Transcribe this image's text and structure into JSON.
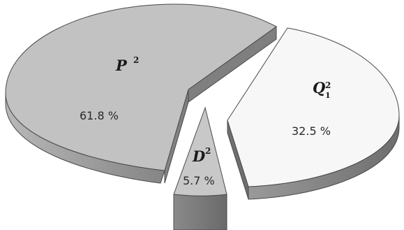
{
  "chart_data": {
    "type": "pie",
    "style": "3d-exploded",
    "slices": [
      {
        "key": "P",
        "label_base": "P",
        "label_sup": "2",
        "label_sub": "",
        "value": 61.8,
        "value_text": "61.8 %",
        "top_color": "#c2c2c2",
        "side_color": "#8f8f8f"
      },
      {
        "key": "Q1",
        "label_base": "Q",
        "label_sup": "2",
        "label_sub": "1",
        "value": 32.5,
        "value_text": "32.5 %",
        "top_color": "#f7f7f7",
        "side_color": "#8a8a8a"
      },
      {
        "key": "D",
        "label_base": "D",
        "label_sup": "2",
        "label_sub": "",
        "value": 5.7,
        "value_text": "5.7 %",
        "top_color": "#c8c8c8",
        "side_color": "#7a7a7a"
      }
    ]
  }
}
